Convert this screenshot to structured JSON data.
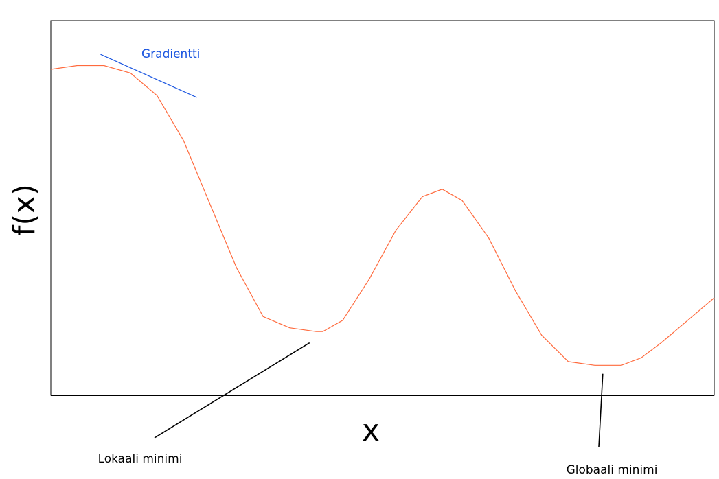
{
  "chart_data": {
    "type": "line",
    "title": "",
    "xlabel": "x",
    "ylabel": "f(x)",
    "xlim": [
      0,
      10
    ],
    "ylim": [
      0,
      10
    ],
    "grid": false,
    "legend": "none",
    "colors": {
      "curve": "#ff6a3d",
      "gradient": "#1a55e0",
      "axis": "#000000"
    },
    "series": [
      {
        "x": [
          0,
          0.4,
          0.8,
          1.2,
          1.6,
          2.0,
          2.4,
          2.8,
          3.2,
          3.6,
          4.0,
          4.1,
          4.4,
          4.8,
          5.2,
          5.6,
          5.9,
          6.2,
          6.6,
          7.0,
          7.4,
          7.8,
          8.2,
          8.4,
          8.6,
          8.9,
          9.2,
          9.6,
          10.0
        ],
        "y": [
          8.7,
          8.8,
          8.8,
          8.6,
          8.0,
          6.8,
          5.1,
          3.4,
          2.1,
          1.8,
          1.7,
          1.7,
          2.0,
          3.1,
          4.4,
          5.3,
          5.5,
          5.2,
          4.2,
          2.8,
          1.6,
          0.9,
          0.8,
          0.8,
          0.8,
          1.0,
          1.4,
          2.0,
          2.6
        ]
      }
    ],
    "annotations": [
      {
        "label": "Gradientti",
        "kind": "tangent",
        "x1": 0.75,
        "y1": 9.1,
        "x2": 2.2,
        "y2": 7.95
      },
      {
        "label": "Lokaali minimi",
        "kind": "pointer",
        "x1": 3.9,
        "y1": 1.4
      },
      {
        "label": "Globaali minimi",
        "kind": "pointer",
        "x1": 8.3,
        "y1": 0.5
      }
    ]
  }
}
